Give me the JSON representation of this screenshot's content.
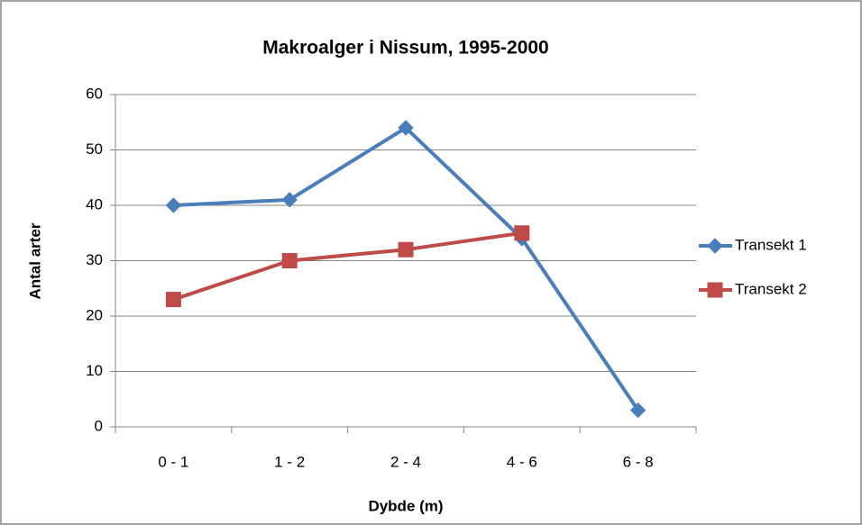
{
  "chart_data": {
    "type": "line",
    "title": "Makroalger i Nissum, 1995-2000",
    "x_label": "Dybde (m)",
    "y_label": "Antal arter",
    "categories": [
      "0 - 1",
      "1 - 2",
      "2 - 4",
      "4 - 6",
      "6 - 8"
    ],
    "series": [
      {
        "name": "Transekt 1",
        "color": "#4a7ebb",
        "marker": "diamond",
        "values": [
          40,
          41,
          54,
          34,
          3
        ]
      },
      {
        "name": "Transekt 2",
        "color": "#be4b48",
        "marker": "square",
        "values": [
          23,
          30,
          32,
          35,
          null
        ]
      }
    ],
    "ylim": [
      0,
      60
    ],
    "yticks": [
      0,
      10,
      20,
      30,
      40,
      50,
      60
    ],
    "grid": true,
    "legend": "right"
  }
}
